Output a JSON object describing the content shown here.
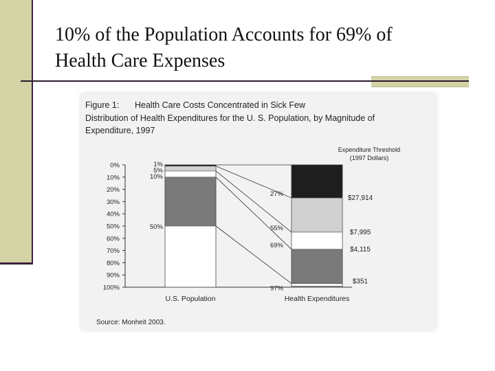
{
  "slide": {
    "title_line1": "10% of the Population Accounts for 69% of",
    "title_line2": "Health Care Expenses"
  },
  "chart_data": {
    "type": "bar",
    "figure_label": "Figure 1:",
    "title": "Health Care Costs Concentrated in Sick Few",
    "subtitle_line1": "Distribution of Health Expenditures for the U. S. Population, by Magnitude of",
    "subtitle_line2": "Expenditure, 1997",
    "categories": [
      "U.S. Population",
      "Health Expenditures"
    ],
    "y_axis": {
      "range": [
        0,
        100
      ],
      "ticks": [
        "0%",
        "10%",
        "20%",
        "30%",
        "40%",
        "50%",
        "60%",
        "70%",
        "80%",
        "90%",
        "100%"
      ]
    },
    "threshold_header_line1": "Expenditure Threshold",
    "threshold_header_line2": "(1997 Dollars)",
    "segments": [
      {
        "pop_start": 0,
        "pop_end": 1,
        "exp_start": 0,
        "exp_end": 27,
        "pop_label": "1%",
        "exp_label": "27%",
        "threshold": "$27,914",
        "color": "#1e1e1e"
      },
      {
        "pop_start": 1,
        "pop_end": 5,
        "exp_start": 27,
        "exp_end": 55,
        "pop_label": "5%",
        "exp_label": "55%",
        "threshold": "$7,995",
        "color": "#d0d0d0"
      },
      {
        "pop_start": 5,
        "pop_end": 10,
        "exp_start": 55,
        "exp_end": 69,
        "pop_label": "10%",
        "exp_label": "69%",
        "threshold": "$4,115",
        "color": "#ffffff"
      },
      {
        "pop_start": 10,
        "pop_end": 50,
        "exp_start": 69,
        "exp_end": 97,
        "pop_label": "50%",
        "exp_label": "97%",
        "threshold": "$351",
        "color": "#7a7a7a"
      }
    ],
    "top_segment_color": "#9b9b9b",
    "source": "Source: Monheit 2003."
  }
}
